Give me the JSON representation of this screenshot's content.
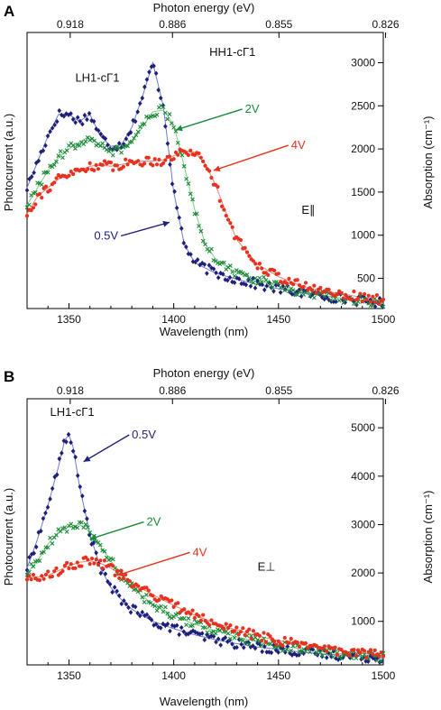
{
  "colors": {
    "series_0_5V": "#1f1f7a",
    "series_2V": "#1a8a3a",
    "series_4V": "#e8311f",
    "fit_0_5V": "#6f7ad0",
    "fit_2V": "#7fcf7f",
    "fit_4V": "#f08070"
  },
  "panels": [
    {
      "letter": "A"
    },
    {
      "letter": "B"
    }
  ],
  "chart_data": [
    {
      "type": "scatter",
      "panel": "A",
      "xlabel": "Wavelength (nm)",
      "ylabel": "Photocurrent (a.u.)",
      "y2label": "Absorption (cm⁻¹)",
      "top_xlabel": "Photon energy (eV)",
      "xlim": [
        1330,
        1500
      ],
      "x_ticks": [
        1350,
        1400,
        1450,
        1500
      ],
      "y2lim": [
        150,
        3350
      ],
      "y2_ticks": [
        500,
        1000,
        1500,
        2000,
        2500,
        3000
      ],
      "top_ticks": [
        {
          "label": "0.918",
          "wavelength": 1350.6
        },
        {
          "label": "0.886",
          "wavelength": 1399.4
        },
        {
          "label": "0.855",
          "wavelength": 1450.2
        },
        {
          "label": "0.826",
          "wavelength": 1501.1
        }
      ],
      "annotations": [
        {
          "text": "LH1-cΓ1",
          "x": 1353,
          "y": 2780,
          "color": "#111111"
        },
        {
          "text": "HH1-cΓ1",
          "x": 1417,
          "y": 3080,
          "color": "#111111"
        },
        {
          "text": "2V",
          "x": 1434,
          "y": 2420,
          "color": "#1a8a3a",
          "arrow_to": [
            1401,
            2220
          ]
        },
        {
          "text": "4V",
          "x": 1456,
          "y": 2000,
          "color": "#e8311f",
          "arrow_to": [
            1419,
            1750
          ]
        },
        {
          "text": "0.5V",
          "x": 1362,
          "y": 950,
          "color": "#1f1f7a",
          "arrow_to": [
            1398,
            1150
          ]
        },
        {
          "text": "E∥",
          "x": 1461,
          "y": 1250,
          "color": "#111111"
        }
      ],
      "series": [
        {
          "name": "0.5V",
          "color": "#1f1f7a",
          "marker": "diamond",
          "x": [
            1330,
            1335,
            1340,
            1345,
            1350,
            1355,
            1360,
            1365,
            1370,
            1375,
            1380,
            1385,
            1390,
            1395,
            1400,
            1405,
            1410,
            1420,
            1430,
            1440,
            1450,
            1460,
            1470,
            1480,
            1490,
            1500
          ],
          "y": [
            1550,
            1850,
            2150,
            2400,
            2400,
            2320,
            2400,
            2150,
            2030,
            2050,
            2250,
            2600,
            3000,
            2500,
            1500,
            900,
            680,
            560,
            490,
            430,
            380,
            340,
            300,
            270,
            240,
            215
          ]
        },
        {
          "name": "2V",
          "color": "#1a8a3a",
          "marker": "x",
          "x": [
            1330,
            1335,
            1340,
            1345,
            1350,
            1355,
            1360,
            1365,
            1370,
            1375,
            1380,
            1385,
            1390,
            1395,
            1400,
            1405,
            1410,
            1415,
            1420,
            1430,
            1440,
            1450,
            1460,
            1470,
            1480,
            1490,
            1500
          ],
          "y": [
            1350,
            1550,
            1750,
            1900,
            2000,
            2080,
            2150,
            2040,
            1960,
            2000,
            2080,
            2250,
            2430,
            2450,
            2280,
            1800,
            1300,
            900,
            720,
            560,
            480,
            410,
            350,
            310,
            270,
            240,
            210
          ]
        },
        {
          "name": "4V",
          "color": "#e8311f",
          "marker": "dot",
          "x": [
            1330,
            1335,
            1340,
            1345,
            1350,
            1355,
            1360,
            1365,
            1370,
            1375,
            1380,
            1385,
            1390,
            1395,
            1400,
            1405,
            1410,
            1415,
            1420,
            1425,
            1430,
            1440,
            1450,
            1460,
            1470,
            1480,
            1490,
            1500
          ],
          "y": [
            1250,
            1450,
            1550,
            1650,
            1700,
            1750,
            1800,
            1810,
            1800,
            1820,
            1840,
            1860,
            1860,
            1870,
            1920,
            1980,
            1960,
            1830,
            1580,
            1260,
            950,
            660,
            520,
            420,
            360,
            320,
            280,
            240
          ]
        }
      ]
    },
    {
      "type": "scatter",
      "panel": "B",
      "xlabel": "Wavelength (nm)",
      "ylabel": "Photocurrent (a.u.)",
      "y2label": "Absorption (cm⁻¹)",
      "top_xlabel": "Photon energy (eV)",
      "xlim": [
        1330,
        1500
      ],
      "x_ticks": [
        1350,
        1400,
        1450,
        1500
      ],
      "y2lim": [
        100,
        5600
      ],
      "y2_ticks": [
        1000,
        2000,
        3000,
        4000,
        5000
      ],
      "top_ticks": [
        {
          "label": "0.918",
          "wavelength": 1350.6
        },
        {
          "label": "0.886",
          "wavelength": 1399.4
        },
        {
          "label": "0.855",
          "wavelength": 1450.2
        },
        {
          "label": "0.826",
          "wavelength": 1501.1
        }
      ],
      "annotations": [
        {
          "text": "LH1-cΓ1",
          "x": 1341,
          "y": 5250,
          "color": "#111111"
        },
        {
          "text": "0.5V",
          "x": 1380,
          "y": 4780,
          "color": "#1f1f7a",
          "arrow_to": [
            1357,
            4300
          ]
        },
        {
          "text": "2V",
          "x": 1387,
          "y": 2980,
          "color": "#1a8a3a",
          "arrow_to": [
            1360,
            2700
          ]
        },
        {
          "text": "4V",
          "x": 1409,
          "y": 2350,
          "color": "#e8311f",
          "arrow_to": [
            1373,
            1950
          ]
        },
        {
          "text": "E⊥",
          "x": 1440,
          "y": 2050,
          "color": "#111111"
        }
      ],
      "series": [
        {
          "name": "0.5V",
          "color": "#1f1f7a",
          "marker": "diamond",
          "x": [
            1330,
            1335,
            1340,
            1345,
            1348,
            1350,
            1352,
            1355,
            1360,
            1365,
            1370,
            1375,
            1380,
            1390,
            1400,
            1410,
            1420,
            1430,
            1440,
            1450,
            1460,
            1470,
            1480,
            1490,
            1500
          ],
          "y": [
            2100,
            2700,
            3400,
            4200,
            4750,
            4850,
            4600,
            3800,
            2800,
            2100,
            1700,
            1450,
            1250,
            1000,
            850,
            720,
            620,
            540,
            470,
            420,
            370,
            330,
            300,
            270,
            240
          ]
        },
        {
          "name": "2V",
          "color": "#1a8a3a",
          "marker": "x",
          "x": [
            1330,
            1335,
            1340,
            1345,
            1350,
            1355,
            1360,
            1365,
            1370,
            1375,
            1380,
            1390,
            1400,
            1410,
            1420,
            1430,
            1440,
            1450,
            1460,
            1470,
            1480,
            1490,
            1500
          ],
          "y": [
            2000,
            2250,
            2600,
            2850,
            2950,
            3000,
            2850,
            2550,
            2250,
            1950,
            1700,
            1350,
            1120,
            940,
            800,
            680,
            580,
            500,
            440,
            380,
            330,
            290,
            260
          ]
        },
        {
          "name": "4V",
          "color": "#e8311f",
          "marker": "dot",
          "x": [
            1330,
            1335,
            1340,
            1345,
            1350,
            1355,
            1360,
            1365,
            1370,
            1375,
            1380,
            1390,
            1400,
            1410,
            1420,
            1430,
            1440,
            1450,
            1460,
            1470,
            1480,
            1490,
            1500
          ],
          "y": [
            1900,
            1920,
            1950,
            2050,
            2150,
            2220,
            2250,
            2200,
            2100,
            1950,
            1800,
            1550,
            1330,
            1130,
            960,
            820,
            700,
            600,
            520,
            450,
            390,
            340,
            300
          ]
        }
      ]
    }
  ]
}
